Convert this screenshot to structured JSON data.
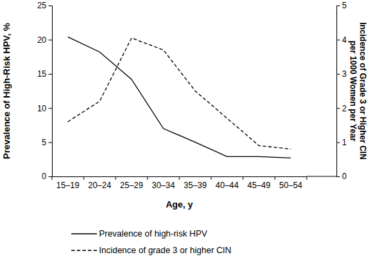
{
  "chart_data": {
    "type": "line",
    "xlabel": "Age, y",
    "ylabel": "Prevalence of High-Risk HPV, %",
    "y2label": [
      "Incidence of Grade 3 or Higher CIN",
      "per 1000 Women per Year"
    ],
    "categories": [
      "15–19",
      "20–24",
      "25–29",
      "30–34",
      "35–39",
      "40–44",
      "45–49",
      "50–54"
    ],
    "series": [
      {
        "name": "Prevalence of high-risk HPV",
        "color": "#000000",
        "line_style": "solid",
        "values": [
          20.4,
          18.2,
          14.2,
          7.0,
          5.0,
          2.9,
          2.9,
          2.7
        ]
      },
      {
        "name": "Incidence of grade 3 or higher CIN",
        "color": "#000000",
        "line_style": "dashed",
        "axis": "y2",
        "values": [
          1.6,
          2.2,
          4.05,
          3.7,
          2.5,
          1.7,
          0.9,
          0.8
        ]
      }
    ],
    "ylim": [
      0,
      25
    ],
    "yticks": [
      0,
      5,
      10,
      15,
      20,
      25
    ],
    "y2lim": [
      0,
      5
    ],
    "y2ticks": [
      0,
      1,
      2,
      3,
      4,
      5
    ],
    "legend": "bottom"
  }
}
